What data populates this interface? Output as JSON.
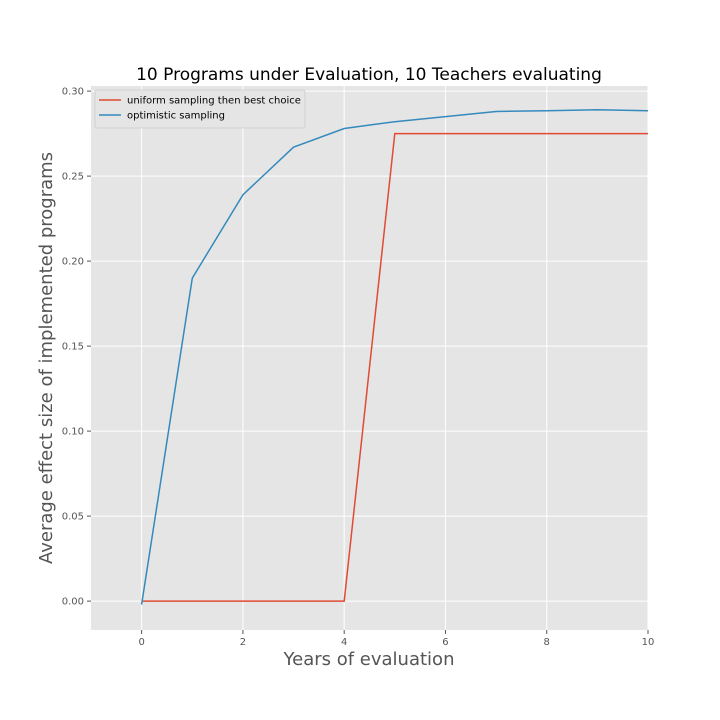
{
  "chart_data": {
    "type": "line",
    "title": "10 Programs under Evaluation, 10 Teachers evaluating",
    "xlabel": "Years of evaluation",
    "ylabel": "Average effect size of implemented programs",
    "xlim": [
      -1,
      10
    ],
    "ylim": [
      -0.017,
      0.303
    ],
    "xticks": [
      0,
      2,
      4,
      6,
      8,
      10
    ],
    "xtick_labels": [
      "0",
      "2",
      "4",
      "6",
      "8",
      "10"
    ],
    "yticks": [
      0.0,
      0.05,
      0.1,
      0.15,
      0.2,
      0.25,
      0.3
    ],
    "ytick_labels": [
      "0.00",
      "0.05",
      "0.10",
      "0.15",
      "0.20",
      "0.25",
      "0.30"
    ],
    "grid": true,
    "legend_position": "top-left",
    "series": [
      {
        "name": "uniform sampling then best choice",
        "color": "#E24A33",
        "x": [
          0,
          1,
          2,
          3,
          4,
          5,
          6,
          7,
          8,
          9,
          10
        ],
        "y": [
          0.0,
          0.0,
          0.0,
          0.0,
          0.0,
          0.275,
          0.275,
          0.275,
          0.275,
          0.275,
          0.275
        ]
      },
      {
        "name": "optimistic sampling",
        "color": "#348ABD",
        "x": [
          0,
          1,
          2,
          3,
          4,
          5,
          6,
          7,
          8,
          9,
          10
        ],
        "y": [
          -0.002,
          0.19,
          0.239,
          0.267,
          0.278,
          0.282,
          0.285,
          0.288,
          0.2885,
          0.289,
          0.2885
        ]
      }
    ]
  }
}
